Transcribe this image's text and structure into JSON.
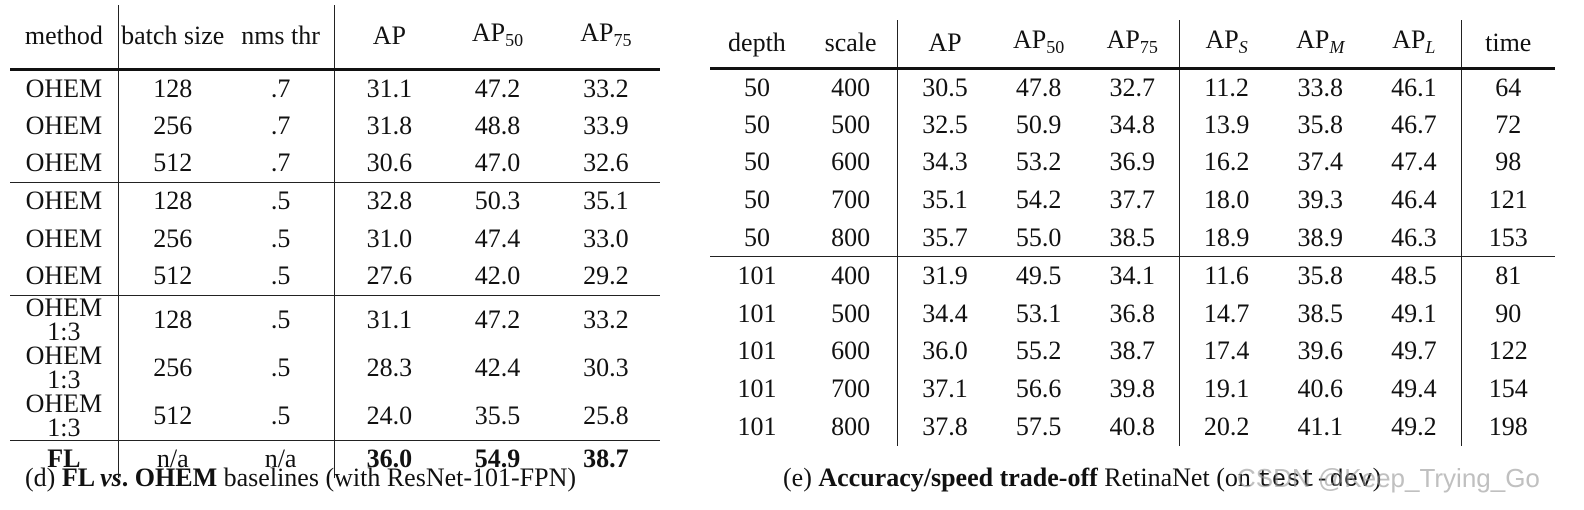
{
  "tables": [
    {
      "id": "d",
      "header": [
        {
          "text": "method"
        },
        {
          "text": "batch size"
        },
        {
          "text": "nms thr"
        },
        {
          "text": "AP"
        },
        {
          "text": "AP",
          "sub": "50"
        },
        {
          "text": "AP",
          "sub": "75"
        }
      ],
      "row_groups": [
        [
          [
            "OHEM",
            "128",
            ".7",
            "31.1",
            "47.2",
            "33.2"
          ],
          [
            "OHEM",
            "256",
            ".7",
            "31.8",
            "48.8",
            "33.9"
          ],
          [
            "OHEM",
            "512",
            ".7",
            "30.6",
            "47.0",
            "32.6"
          ]
        ],
        [
          [
            "OHEM",
            "128",
            ".5",
            "32.8",
            "50.3",
            "35.1"
          ],
          [
            "OHEM",
            "256",
            ".5",
            "31.0",
            "47.4",
            "33.0"
          ],
          [
            "OHEM",
            "512",
            ".5",
            "27.6",
            "42.0",
            "29.2"
          ]
        ],
        [
          [
            "OHEM 1:3",
            "128",
            ".5",
            "31.1",
            "47.2",
            "33.2"
          ],
          [
            "OHEM 1:3",
            "256",
            ".5",
            "28.3",
            "42.4",
            "30.3"
          ],
          [
            "OHEM 1:3",
            "512",
            ".5",
            "24.0",
            "35.5",
            "25.8"
          ]
        ],
        [
          [
            "FL",
            "n/a",
            "n/a",
            "36.0",
            "54.9",
            "38.7"
          ]
        ]
      ],
      "caption": [
        {
          "text": "(d) "
        },
        {
          "text": "FL ",
          "style": "b"
        },
        {
          "text": "vs",
          "style": "bi"
        },
        {
          "text": ". OHEM",
          "style": "b"
        },
        {
          "text": " baselines (with ResNet-101-FPN)"
        }
      ]
    },
    {
      "id": "e",
      "header": [
        {
          "text": "depth"
        },
        {
          "text": "scale"
        },
        {
          "text": "AP"
        },
        {
          "text": "AP",
          "sub": "50"
        },
        {
          "text": "AP",
          "sub": "75"
        },
        {
          "text": "AP",
          "sub": "S"
        },
        {
          "text": "AP",
          "sub": "M"
        },
        {
          "text": "AP",
          "sub": "L"
        },
        {
          "text": "time"
        }
      ],
      "row_groups": [
        [
          [
            "50",
            "400",
            "30.5",
            "47.8",
            "32.7",
            "11.2",
            "33.8",
            "46.1",
            "64"
          ],
          [
            "50",
            "500",
            "32.5",
            "50.9",
            "34.8",
            "13.9",
            "35.8",
            "46.7",
            "72"
          ],
          [
            "50",
            "600",
            "34.3",
            "53.2",
            "36.9",
            "16.2",
            "37.4",
            "47.4",
            "98"
          ],
          [
            "50",
            "700",
            "35.1",
            "54.2",
            "37.7",
            "18.0",
            "39.3",
            "46.4",
            "121"
          ],
          [
            "50",
            "800",
            "35.7",
            "55.0",
            "38.5",
            "18.9",
            "38.9",
            "46.3",
            "153"
          ]
        ],
        [
          [
            "101",
            "400",
            "31.9",
            "49.5",
            "34.1",
            "11.6",
            "35.8",
            "48.5",
            "81"
          ],
          [
            "101",
            "500",
            "34.4",
            "53.1",
            "36.8",
            "14.7",
            "38.5",
            "49.1",
            "90"
          ],
          [
            "101",
            "600",
            "36.0",
            "55.2",
            "38.7",
            "17.4",
            "39.6",
            "49.7",
            "122"
          ],
          [
            "101",
            "700",
            "37.1",
            "56.6",
            "39.8",
            "19.1",
            "40.6",
            "49.4",
            "154"
          ],
          [
            "101",
            "800",
            "37.8",
            "57.5",
            "40.8",
            "20.2",
            "41.1",
            "49.2",
            "198"
          ]
        ]
      ],
      "caption": [
        {
          "text": "(e) "
        },
        {
          "text": "Accuracy/speed trade-off",
          "style": "b"
        },
        {
          "text": " RetinaNet (on "
        },
        {
          "text": "test-dev",
          "style": "mono"
        },
        {
          "text": ")"
        }
      ]
    }
  ],
  "watermark": "CSDN @Keep_Trying_Go"
}
